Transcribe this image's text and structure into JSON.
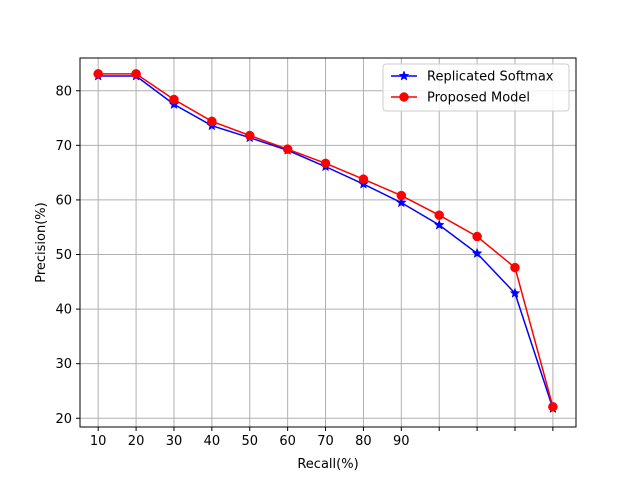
{
  "chart_data": {
    "type": "line",
    "title": "",
    "xlabel": "Recall(%)",
    "ylabel": "Precision(%)",
    "x": [
      10,
      20,
      30,
      40,
      50,
      60,
      70,
      80,
      90,
      100,
      110,
      120,
      130
    ],
    "x_ticks": [
      10,
      20,
      30,
      40,
      50,
      60,
      70,
      80,
      90,
      100,
      110,
      120,
      130
    ],
    "x_tick_labels": [
      "10",
      "20",
      "30",
      "40",
      "50",
      "60",
      "70",
      "80",
      "90",
      "",
      "",
      "",
      ""
    ],
    "y_ticks": [
      20,
      30,
      40,
      50,
      60,
      70,
      80
    ],
    "y_tick_labels": [
      "20",
      "30",
      "40",
      "50",
      "60",
      "70",
      "80"
    ],
    "xlim": [
      5.2,
      136.1
    ],
    "ylim": [
      18.4,
      86.0
    ],
    "grid": true,
    "legend_position": "top-right",
    "series": [
      {
        "name": "Replicated Softmax",
        "color": "#0000ff",
        "marker": "star",
        "values": [
          82.7,
          82.7,
          77.5,
          73.6,
          71.4,
          69.1,
          66.1,
          62.9,
          59.5,
          55.4,
          50.2,
          42.9,
          21.8
        ]
      },
      {
        "name": "Proposed Model",
        "color": "#ff0000",
        "marker": "circle",
        "values": [
          83.1,
          83.1,
          78.4,
          74.4,
          71.8,
          69.3,
          66.7,
          63.8,
          60.8,
          57.2,
          53.3,
          47.6,
          22.1
        ]
      }
    ]
  }
}
